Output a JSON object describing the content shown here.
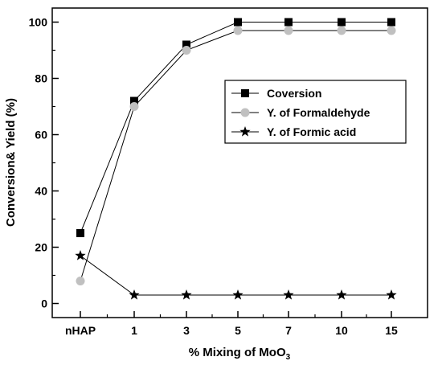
{
  "chart_data": {
    "type": "line",
    "title": "",
    "xlabel": "% Mixing of MoO",
    "xlabel_subscript": "3",
    "ylabel": "Conversion& Yield (%)",
    "categories": [
      "nHAP",
      "1",
      "3",
      "5",
      "7",
      "10",
      "15"
    ],
    "ylim": [
      -5,
      105
    ],
    "yticks": [
      0,
      20,
      40,
      60,
      80,
      100
    ],
    "grid": false,
    "legend_position": "center-right",
    "series": [
      {
        "name": "Coversion",
        "marker": "square",
        "color": "#000000",
        "line_color": "#000000",
        "values": [
          25,
          72,
          92,
          100,
          100,
          100,
          100
        ]
      },
      {
        "name": "Y. of Formaldehyde",
        "marker": "circle",
        "color": "#c0c0c0",
        "line_color": "#000000",
        "values": [
          8,
          70,
          90,
          97,
          97,
          97,
          97
        ]
      },
      {
        "name": "Y. of Formic acid",
        "marker": "star",
        "color": "#000000",
        "line_color": "#000000",
        "values": [
          17,
          3,
          3,
          3,
          3,
          3,
          3
        ]
      }
    ]
  }
}
